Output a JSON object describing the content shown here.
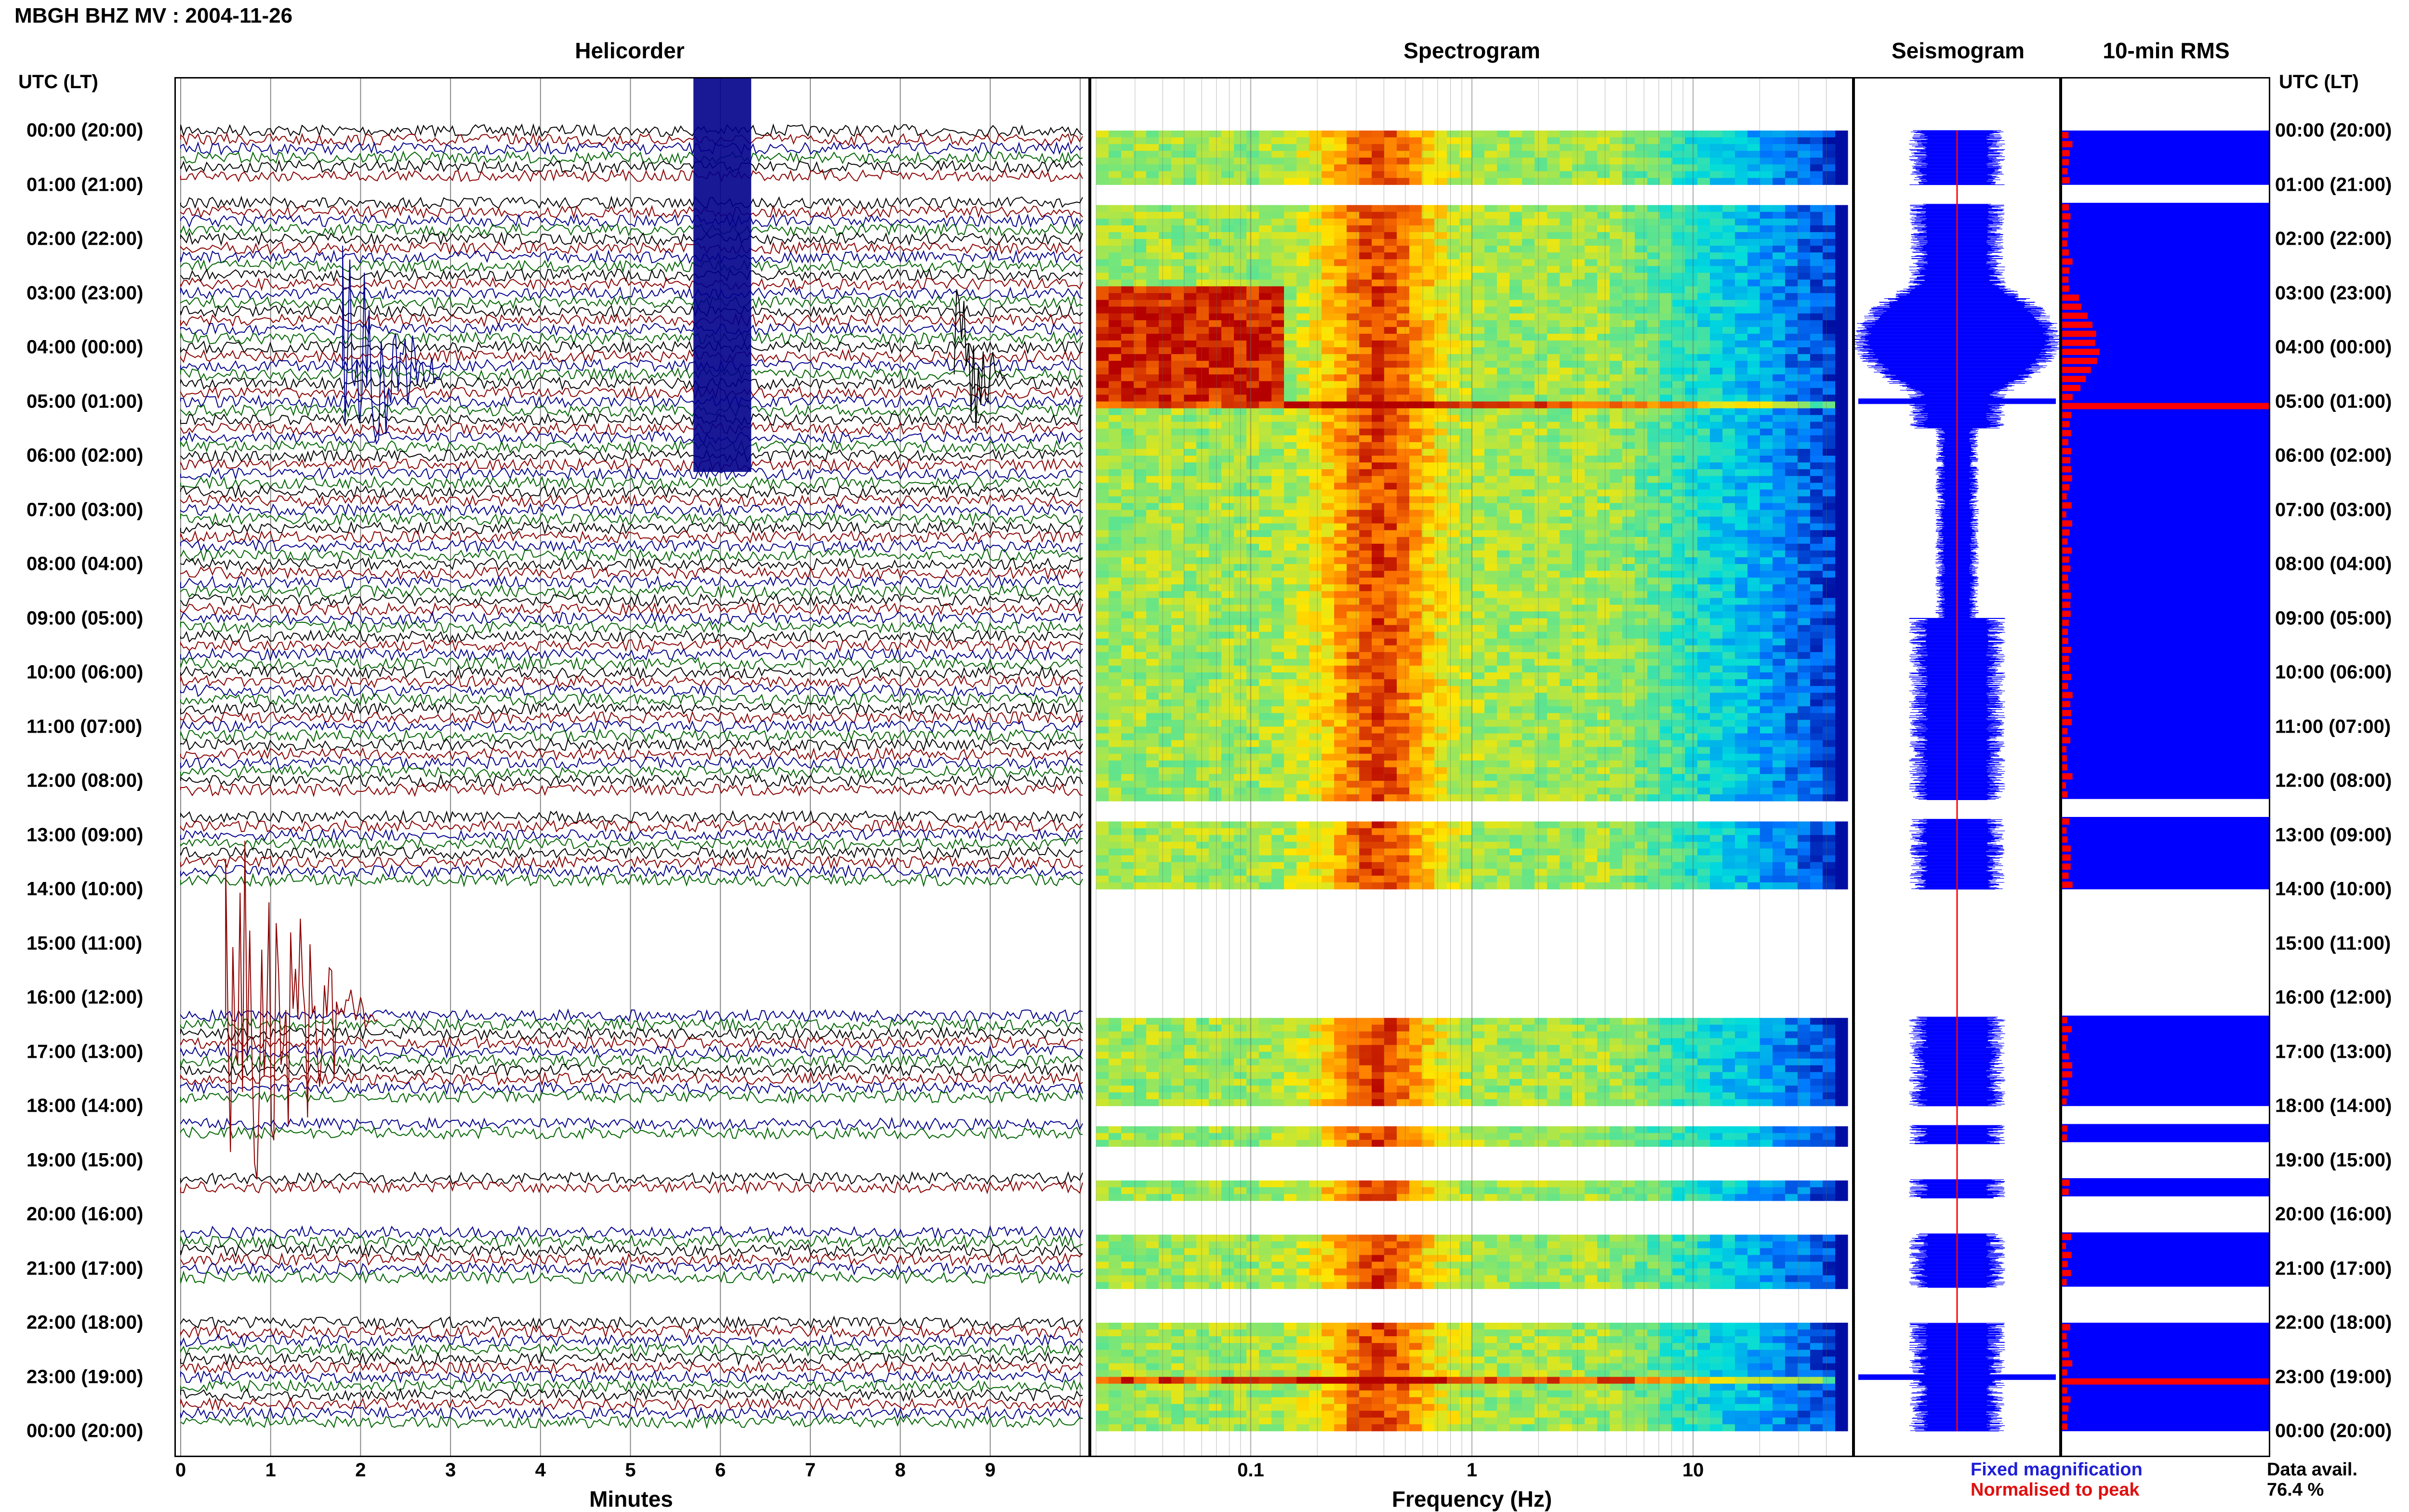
{
  "title": "MBGH BHZ MV : 2004-11-26",
  "panels": {
    "helicorder": "Helicorder",
    "spectrogram": "Spectrogram",
    "seismogram": "Seismogram",
    "rms": "10-min RMS"
  },
  "time_axis_label": "UTC (LT)",
  "hour_labels": [
    "00:00 (20:00)",
    "01:00 (21:00)",
    "02:00 (22:00)",
    "03:00 (23:00)",
    "04:00 (00:00)",
    "05:00 (01:00)",
    "06:00 (02:00)",
    "07:00 (03:00)",
    "08:00 (04:00)",
    "09:00 (05:00)",
    "10:00 (06:00)",
    "11:00 (07:00)",
    "12:00 (08:00)",
    "13:00 (09:00)",
    "14:00 (10:00)",
    "15:00 (11:00)",
    "16:00 (12:00)",
    "17:00 (13:00)",
    "18:00 (14:00)",
    "19:00 (15:00)",
    "20:00 (16:00)",
    "21:00 (17:00)",
    "22:00 (18:00)",
    "23:00 (19:00)",
    "00:00 (20:00)"
  ],
  "x_axes": {
    "minutes": {
      "label": "Minutes",
      "ticks": [
        "0",
        "1",
        "2",
        "3",
        "4",
        "5",
        "6",
        "7",
        "8",
        "9"
      ]
    },
    "frequency": {
      "label": "Frequency (Hz)",
      "ticks": [
        "0.1",
        "1",
        "10"
      ]
    }
  },
  "legend": {
    "fixed": "Fixed magnification",
    "normalised": "Normalised to peak",
    "fixed_color": "#1f1fd6",
    "normalised_color": "#e01010"
  },
  "data_avail": {
    "label": "Data avail.",
    "value": "76.4 %"
  },
  "colors": {
    "trace_black": "#000000",
    "trace_red": "#8b0000",
    "trace_blue": "#00008b",
    "trace_green": "#006400",
    "bar_blue": "#0000ff",
    "peak_red": "#ff0000"
  },
  "chart_data": {
    "type": "heatmap",
    "title": "MBGH BHZ MV : 2004-11-26",
    "y_axis": {
      "label": "UTC (LT)",
      "range_hours": [
        0,
        24
      ]
    },
    "helicorder": {
      "x_axis": "Minutes",
      "x_range": [
        0,
        10
      ]
    },
    "spectrogram": {
      "x_axis": "Frequency (Hz)",
      "x_scale": "log",
      "x_range": [
        0.02,
        50
      ]
    },
    "data_availability_percent": 76.4,
    "data_gaps_hours": [
      [
        1.0,
        1.35
      ],
      [
        12.35,
        12.7
      ],
      [
        14.0,
        16.35
      ],
      [
        18.0,
        18.35
      ],
      [
        18.7,
        19.35
      ],
      [
        19.7,
        20.35
      ],
      [
        21.35,
        22.0
      ]
    ],
    "rms_peaks_hours": [
      5.0,
      23.0
    ]
  }
}
